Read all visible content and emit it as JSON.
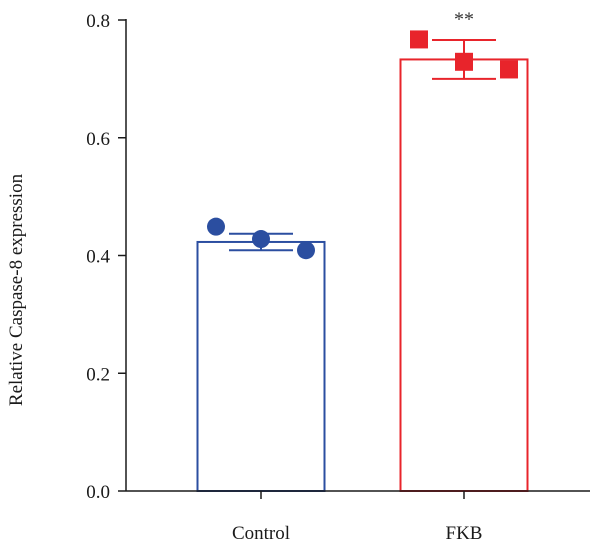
{
  "chart_data": {
    "type": "bar",
    "title": "",
    "xlabel": "",
    "ylabel": "Relative Caspase-8 expression",
    "ylim": [
      0,
      0.8
    ],
    "yticks": [
      0.0,
      0.2,
      0.4,
      0.6,
      0.8
    ],
    "ytick_labels": [
      "0.0",
      "0.2",
      "0.4",
      "0.6",
      "0.8"
    ],
    "grid": false,
    "legend": "none",
    "categories": [
      "Control",
      "FKB"
    ],
    "values": [
      0.423,
      0.733
    ],
    "error": [
      0.014,
      0.033
    ],
    "points": [
      [
        0.449,
        0.428,
        0.409
      ],
      [
        0.767,
        0.729,
        0.716
      ]
    ],
    "colors": [
      "#2b4ea0",
      "#e8242b"
    ],
    "markers": [
      "circle",
      "square"
    ],
    "annotations": [
      {
        "category": "FKB",
        "text": "**"
      }
    ]
  }
}
